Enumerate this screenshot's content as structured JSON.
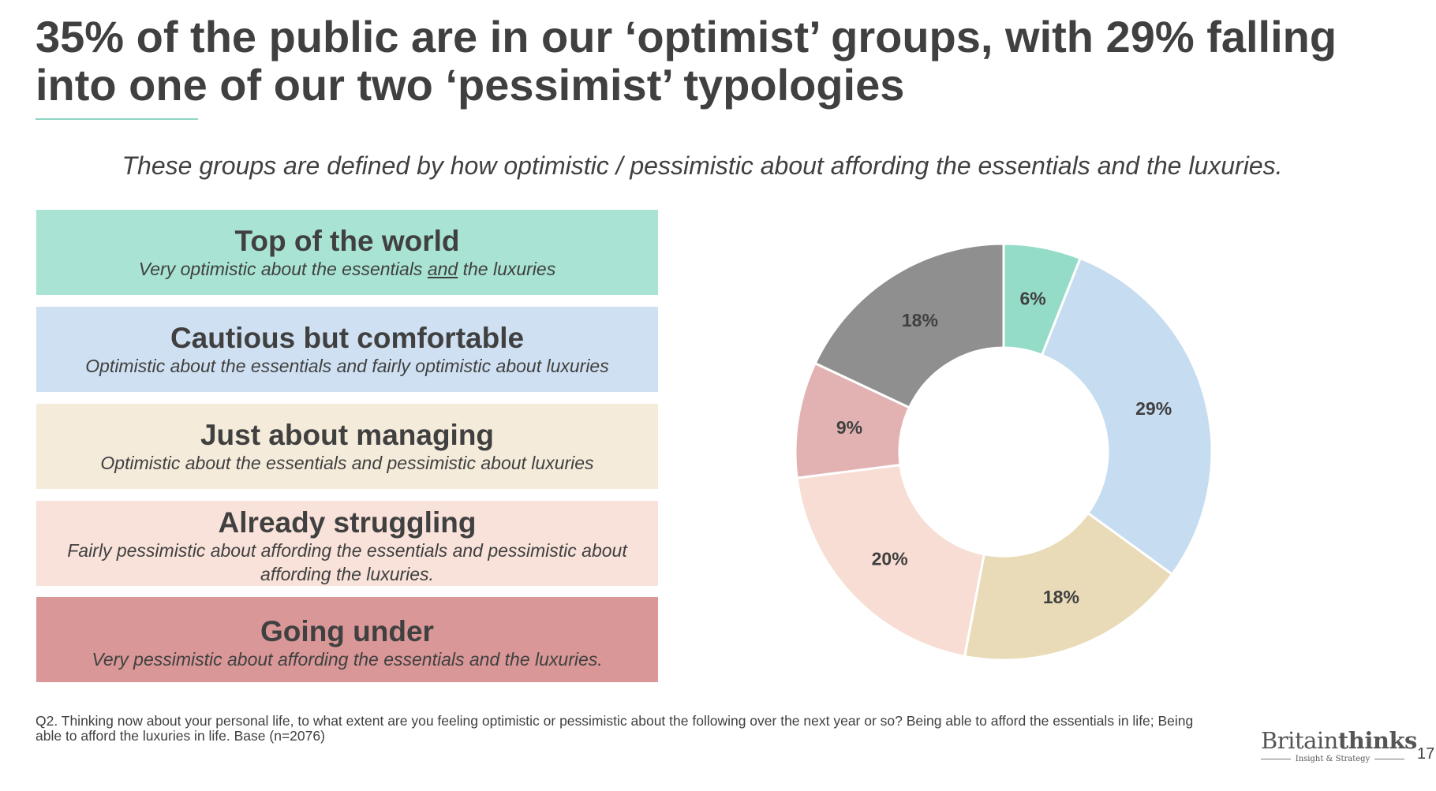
{
  "title": "35% of the public are in our ‘optimist’ groups, with 29% falling into one of our two ‘pessimist’ typologies",
  "subtitle": "These groups are defined by how optimistic / pessimistic about affording the essentials and the luxuries.",
  "groups": [
    {
      "name": "Top of the world",
      "desc_before": "Very optimistic about the essentials ",
      "desc_underline": "and",
      "desc_after": " the luxuries",
      "color": "#a8e3d3"
    },
    {
      "name": "Cautious but comfortable",
      "desc": "Optimistic about the essentials and fairly optimistic about luxuries",
      "color": "#cfe0f2"
    },
    {
      "name": "Just about managing",
      "desc": "Optimistic about the essentials and pessimistic about luxuries",
      "color": "#f4ebda"
    },
    {
      "name": "Already struggling",
      "desc": "Fairly pessimistic about affording the essentials and pessimistic about affording the luxuries.",
      "color": "#f8e2d9"
    },
    {
      "name": "Going under",
      "desc": "Very pessimistic about affording the essentials and the luxuries.",
      "color": "#d99797"
    }
  ],
  "chart_data": {
    "type": "pie",
    "variant": "donut",
    "start": "12 o'clock",
    "direction": "clockwise",
    "slices": [
      {
        "label": "6%",
        "value": 6,
        "color": "#95dcc8"
      },
      {
        "label": "29%",
        "value": 29,
        "color": "#c6dcf0"
      },
      {
        "label": "18%",
        "value": 18,
        "color": "#e9dbb7"
      },
      {
        "label": "20%",
        "value": 20,
        "color": "#f7ddd3"
      },
      {
        "label": "9%",
        "value": 9,
        "color": "#e2b2b2"
      },
      {
        "label": "18%",
        "value": 18,
        "color": "#8f8f8f"
      }
    ]
  },
  "footnote": "Q2. Thinking now about your personal life, to what extent are you feeling optimistic or pessimistic about the following over the next year or so? Being able to afford the essentials in life; Being able to afford the luxuries in life. Base (n=2076)",
  "logo": {
    "brand_regular": "Britain",
    "brand_bold": "thinks",
    "tagline": "Insight & Strategy"
  },
  "page_number": "17"
}
